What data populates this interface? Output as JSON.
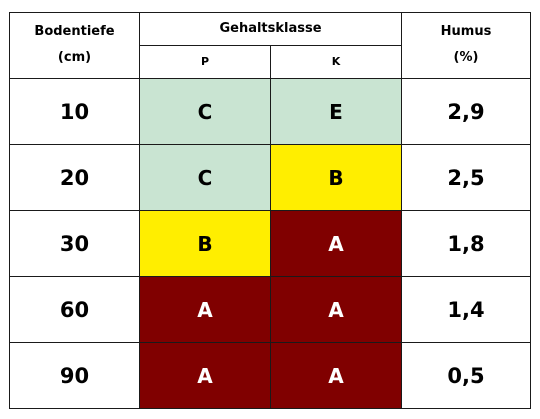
{
  "header": {
    "depth_title": "Bodentiefe",
    "depth_unit": "(cm)",
    "class_title": "Gehaltsklasse",
    "class_p": "P",
    "class_k": "K",
    "humus_title": "Humus",
    "humus_unit": "(%)"
  },
  "rows": [
    {
      "depth": "10",
      "p": "C",
      "k": "E",
      "humus": "2,9",
      "p_color": "#c9e4d2",
      "k_color": "#c9e4d2"
    },
    {
      "depth": "20",
      "p": "C",
      "k": "B",
      "humus": "2,5",
      "p_color": "#c9e4d2",
      "k_color": "#ffee00"
    },
    {
      "depth": "30",
      "p": "B",
      "k": "A",
      "humus": "1,8",
      "p_color": "#ffee00",
      "k_color": "#800000"
    },
    {
      "depth": "60",
      "p": "A",
      "k": "A",
      "humus": "1,4",
      "p_color": "#800000",
      "k_color": "#800000"
    },
    {
      "depth": "90",
      "p": "A",
      "k": "A",
      "humus": "0,5",
      "p_color": "#800000",
      "k_color": "#800000"
    }
  ],
  "colors": {
    "class_A": "#800000",
    "class_B": "#ffee00",
    "class_C_E": "#c9e4d2",
    "border": "#1a1a1a"
  }
}
